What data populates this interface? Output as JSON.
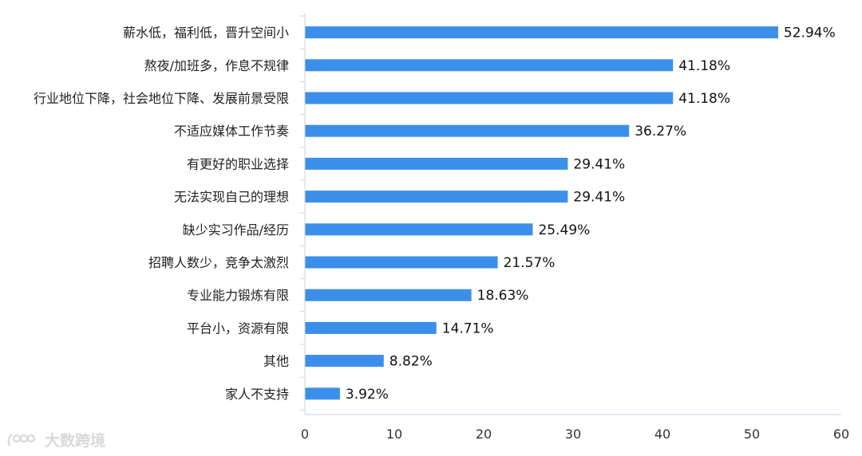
{
  "chart_data": {
    "type": "bar",
    "orientation": "horizontal",
    "categories": [
      "薪水低，福利低，晋升空间小",
      "熬夜/加班多，作息不规律",
      "行业地位下降，社会地位下降、发展前景受限",
      "不适应媒体工作节奏",
      "有更好的职业选择",
      "无法实现自己的理想",
      "缺少实习作品/经历",
      "招聘人数少，竞争太激烈",
      "专业能力锻炼有限",
      "平台小，资源有限",
      "其他",
      "家人不支持"
    ],
    "values": [
      52.94,
      41.18,
      41.18,
      36.27,
      29.41,
      29.41,
      25.49,
      21.57,
      18.63,
      14.71,
      8.82,
      3.92
    ],
    "value_labels": [
      "52.94%",
      "41.18%",
      "41.18%",
      "36.27%",
      "29.41%",
      "29.41%",
      "25.49%",
      "21.57%",
      "18.63%",
      "14.71%",
      "8.82%",
      "3.92%"
    ],
    "xlim": [
      0,
      60
    ],
    "xticks": [
      0,
      10,
      20,
      30,
      40,
      50,
      60
    ],
    "bar_color": "#3b8fea",
    "grid": false,
    "title": "",
    "xlabel": "",
    "ylabel": ""
  },
  "watermark": {
    "text": "大数跨境"
  }
}
